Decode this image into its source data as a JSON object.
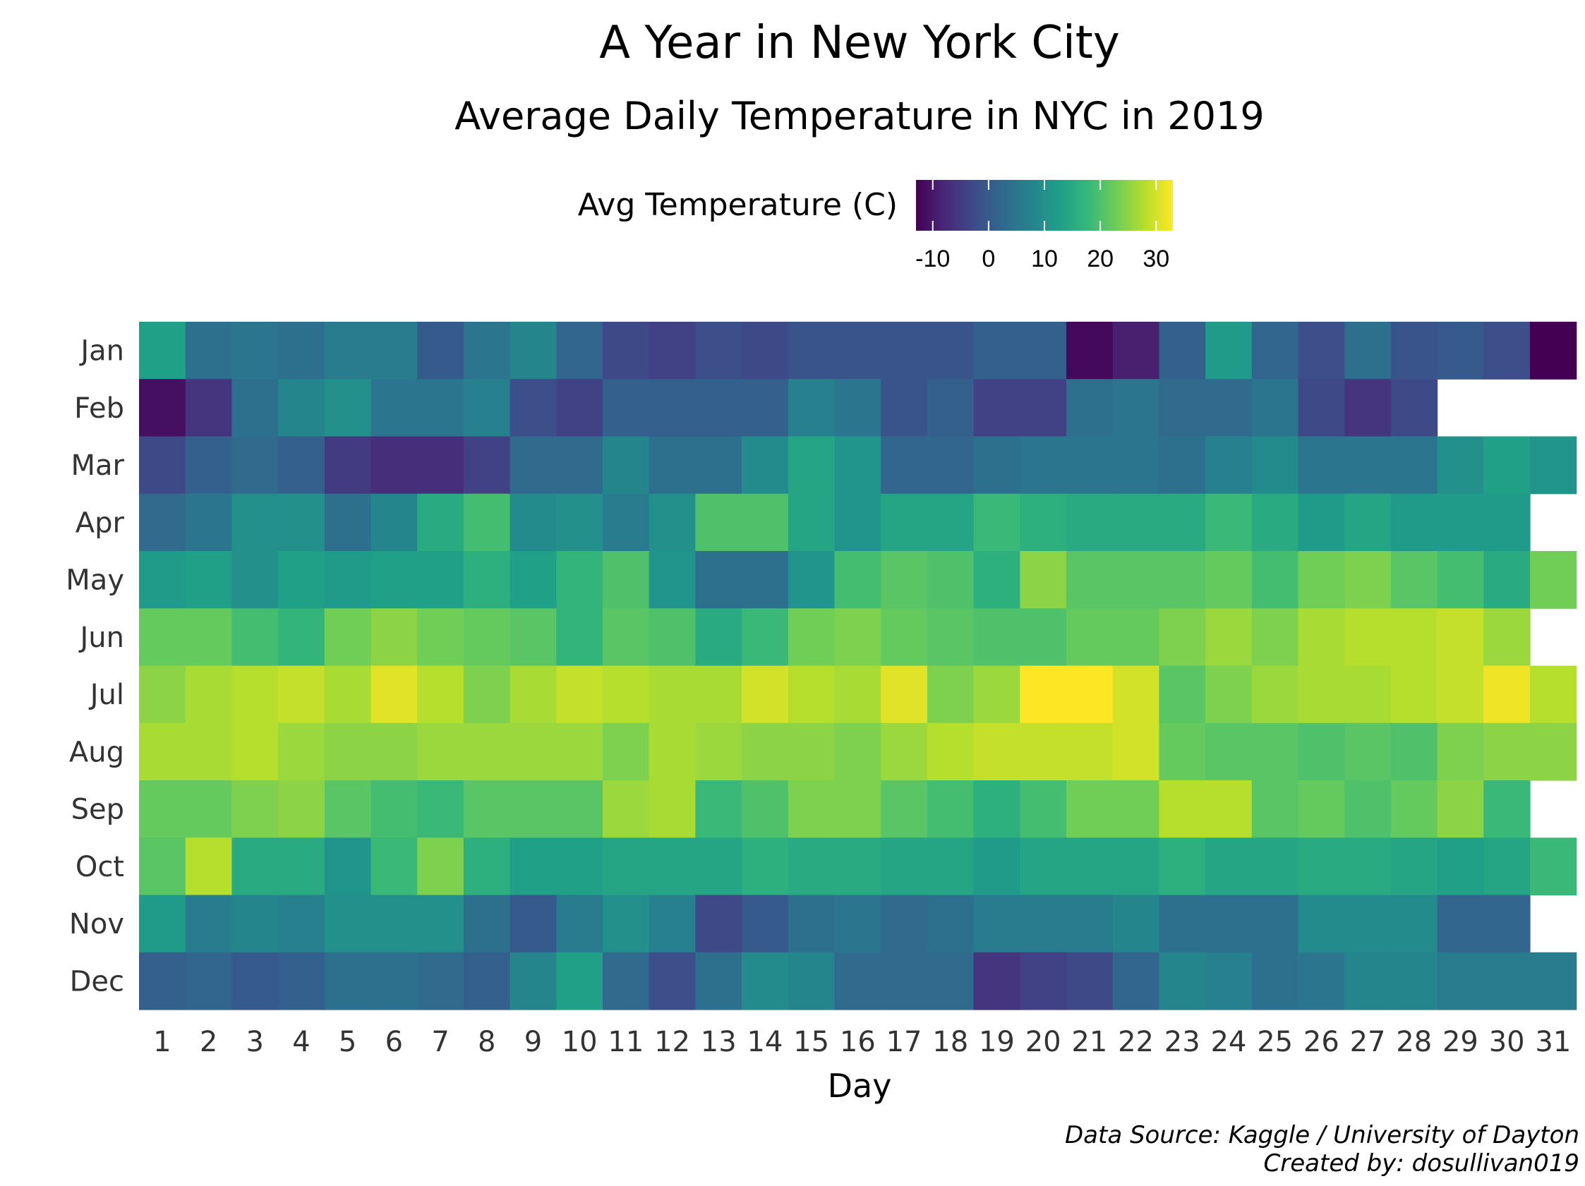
{
  "chart_data": {
    "type": "heatmap",
    "title": "A Year in New York City",
    "subtitle": "Average Daily Temperature in NYC in 2019",
    "xlabel": "Day",
    "legend": {
      "title": "Avg Temperature (C)",
      "position": "top",
      "ticks": [
        "-10",
        "0",
        "10",
        "20",
        "30"
      ],
      "range": [
        -13,
        33
      ],
      "palette": [
        "#440154",
        "#482878",
        "#3E4A89",
        "#31688E",
        "#26828E",
        "#1F9E89",
        "#35B779",
        "#6DCD59",
        "#B4DE2C",
        "#FDE725"
      ]
    },
    "x": [
      "1",
      "2",
      "3",
      "4",
      "5",
      "6",
      "7",
      "8",
      "9",
      "10",
      "11",
      "12",
      "13",
      "14",
      "15",
      "16",
      "17",
      "18",
      "19",
      "20",
      "21",
      "22",
      "23",
      "24",
      "25",
      "26",
      "27",
      "28",
      "29",
      "30",
      "31"
    ],
    "y": [
      "Jan",
      "Feb",
      "Mar",
      "Apr",
      "May",
      "Jun",
      "Jul",
      "Aug",
      "Sep",
      "Oct",
      "Nov",
      "Dec"
    ],
    "values": [
      [
        13,
        4,
        5,
        4,
        6,
        6,
        0,
        5,
        8,
        2,
        -3,
        -4,
        -2,
        -3,
        -1,
        -1,
        -1,
        -1,
        1,
        1,
        -12,
        -9,
        1,
        12,
        2,
        -2,
        4,
        -1,
        0,
        -2,
        -13
      ],
      [
        -11,
        -6,
        4,
        8,
        10,
        5,
        5,
        7,
        -2,
        -4,
        1,
        1,
        1,
        1,
        7,
        5,
        -1,
        1,
        -4,
        -4,
        4,
        5,
        3,
        3,
        5,
        -3,
        -6,
        -3,
        null,
        null,
        null
      ],
      [
        -3,
        1,
        3,
        1,
        -5,
        -7,
        -7,
        -4,
        3,
        3,
        8,
        4,
        4,
        9,
        14,
        11,
        2,
        2,
        4,
        5,
        5,
        5,
        4,
        7,
        9,
        5,
        5,
        5,
        10,
        13,
        11
      ],
      [
        3,
        5,
        10,
        10,
        4,
        8,
        15,
        19,
        9,
        10,
        6,
        10,
        20,
        20,
        14,
        11,
        14,
        14,
        18,
        16,
        15,
        15,
        15,
        18,
        15,
        12,
        14,
        12,
        12,
        12,
        null
      ],
      [
        12,
        13,
        10,
        13,
        12,
        13,
        13,
        16,
        13,
        17,
        20,
        11,
        4,
        4,
        11,
        19,
        21,
        20,
        16,
        25,
        21,
        21,
        21,
        22,
        19,
        23,
        24,
        21,
        19,
        15,
        23
      ],
      [
        22,
        22,
        19,
        17,
        23,
        25,
        23,
        22,
        21,
        17,
        21,
        20,
        15,
        18,
        23,
        24,
        22,
        21,
        20,
        20,
        22,
        22,
        24,
        26,
        24,
        27,
        28,
        28,
        29,
        26,
        null
      ],
      [
        25,
        27,
        28,
        29,
        27,
        31,
        28,
        24,
        27,
        29,
        28,
        27,
        27,
        30,
        28,
        27,
        31,
        24,
        26,
        34,
        34,
        30,
        21,
        24,
        26,
        27,
        27,
        28,
        29,
        32,
        28
      ],
      [
        27,
        27,
        28,
        26,
        25,
        25,
        26,
        26,
        26,
        26,
        24,
        27,
        26,
        25,
        25,
        24,
        26,
        28,
        29,
        29,
        29,
        30,
        22,
        21,
        21,
        20,
        21,
        20,
        24,
        25,
        25
      ],
      [
        22,
        22,
        24,
        25,
        21,
        19,
        18,
        21,
        21,
        21,
        26,
        27,
        18,
        20,
        24,
        24,
        21,
        19,
        16,
        19,
        23,
        23,
        28,
        28,
        21,
        22,
        20,
        22,
        25,
        18,
        null
      ],
      [
        21,
        28,
        15,
        15,
        11,
        18,
        24,
        16,
        13,
        13,
        14,
        14,
        14,
        16,
        15,
        15,
        14,
        14,
        12,
        14,
        14,
        14,
        16,
        14,
        14,
        15,
        15,
        14,
        13,
        14,
        18
      ],
      [
        12,
        6,
        8,
        7,
        10,
        10,
        10,
        4,
        0,
        6,
        10,
        7,
        -3,
        0,
        4,
        5,
        3,
        4,
        6,
        6,
        6,
        8,
        4,
        4,
        4,
        9,
        9,
        9,
        2,
        2,
        null
      ],
      [
        1,
        2,
        0,
        1,
        4,
        4,
        3,
        1,
        8,
        13,
        3,
        -2,
        4,
        9,
        8,
        3,
        3,
        3,
        -6,
        -4,
        -3,
        2,
        8,
        7,
        4,
        5,
        8,
        8,
        6,
        6,
        6
      ]
    ],
    "caption": [
      "Data Source: Kaggle / University of Dayton",
      "Created by: dosullivan019"
    ]
  }
}
